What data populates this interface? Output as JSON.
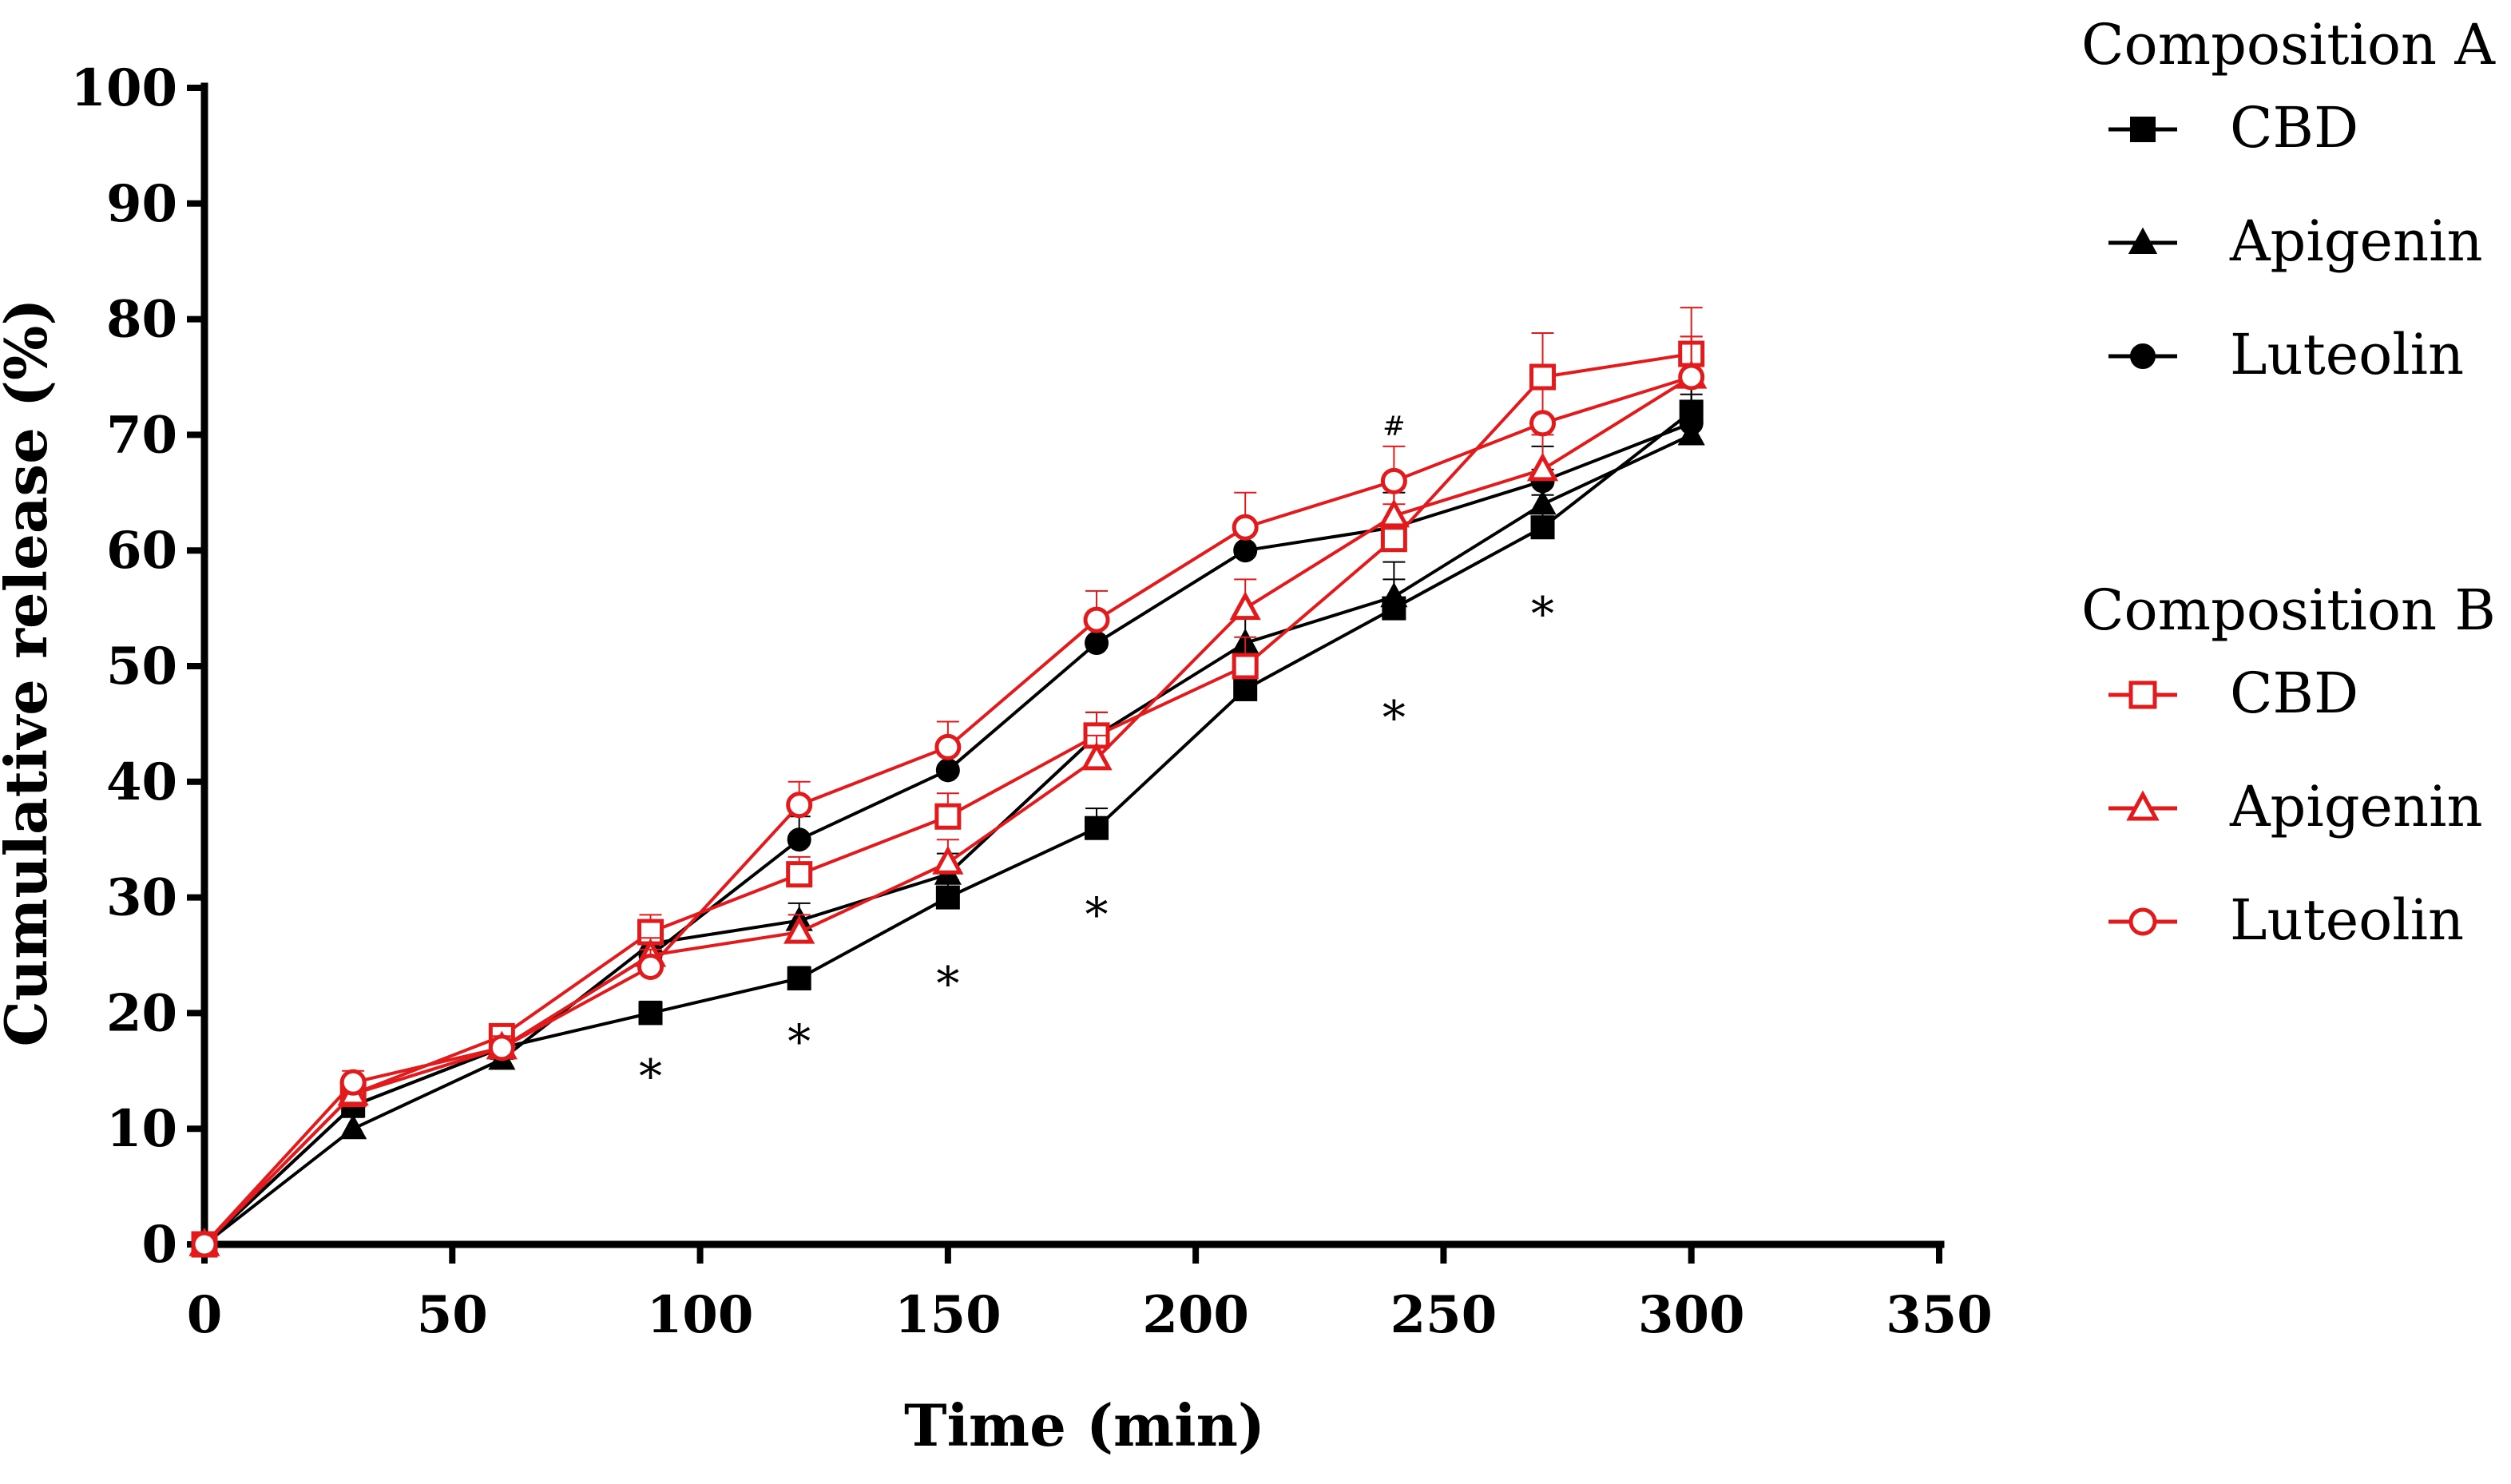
{
  "chart_data": {
    "type": "line",
    "title": "",
    "xlabel": "Time (min)",
    "ylabel": "Cumulative release (%)",
    "xlim": [
      0,
      350
    ],
    "ylim": [
      0,
      100
    ],
    "x_ticks": [
      0,
      50,
      100,
      150,
      200,
      250,
      300,
      350
    ],
    "y_ticks": [
      0,
      10,
      20,
      30,
      40,
      50,
      60,
      70,
      80,
      90,
      100
    ],
    "x_tick_labels": [
      "0",
      "50",
      "100",
      "150",
      "200",
      "250",
      "300",
      "350"
    ],
    "y_tick_labels": [
      "0",
      "10",
      "20",
      "30",
      "40",
      "50",
      "60",
      "70",
      "80",
      "90",
      "100"
    ],
    "grid": false,
    "legend_position": "right",
    "x": [
      0,
      30,
      60,
      90,
      120,
      150,
      180,
      210,
      240,
      270,
      300
    ],
    "groups": [
      {
        "title": "Composition A",
        "color": "#000000",
        "filled": true,
        "series": [
          {
            "name": "CBD",
            "marker": "square",
            "values": [
              0,
              12,
              17,
              20,
              23,
              30,
              36,
              48,
              55,
              62,
              72
            ],
            "errors": [
              0,
              1,
              1,
              1,
              1,
              1.5,
              1.7,
              2,
              2.5,
              2.8,
              3
            ]
          },
          {
            "name": "Apigenin",
            "marker": "triangle",
            "values": [
              0,
              10,
              16,
              26,
              28,
              32,
              44,
              52,
              56,
              64,
              70
            ],
            "errors": [
              0,
              1,
              1,
              1.5,
              1.5,
              1.8,
              2,
              2.5,
              3,
              3,
              3.5
            ]
          },
          {
            "name": "Luteolin",
            "marker": "circle",
            "values": [
              0,
              12,
              17,
              25,
              35,
              41,
              52,
              60,
              62,
              66,
              71
            ],
            "errors": [
              0,
              1,
              1,
              1.5,
              2,
              2,
              2.5,
              2.5,
              3,
              3,
              3.5
            ]
          }
        ]
      },
      {
        "title": "Composition B",
        "color": "#e31a1c",
        "filled": false,
        "series": [
          {
            "name": "CBD",
            "marker": "square",
            "values": [
              0,
              13,
              18,
              27,
              32,
              37,
              44,
              50,
              61,
              75,
              77
            ],
            "errors": [
              0,
              1,
              1,
              1.5,
              1.5,
              2,
              2,
              2.5,
              3,
              3.8,
              4
            ]
          },
          {
            "name": "Apigenin",
            "marker": "triangle",
            "values": [
              0,
              13,
              17,
              25,
              27,
              33,
              42,
              55,
              63,
              67,
              75
            ],
            "errors": [
              0,
              1,
              1,
              1.5,
              1.5,
              2,
              2,
              2.5,
              3,
              3,
              3.5
            ]
          },
          {
            "name": "Luteolin",
            "marker": "circle",
            "values": [
              0,
              14,
              17,
              24,
              38,
              43,
              54,
              62,
              66,
              71,
              75
            ],
            "errors": [
              0,
              1,
              1,
              1.5,
              2,
              2.2,
              2.5,
              3,
              3,
              3,
              3.5
            ]
          }
        ]
      }
    ],
    "annotations": [
      {
        "text": "*",
        "x": 90,
        "y": 15.5
      },
      {
        "text": "*",
        "x": 120,
        "y": 18.5
      },
      {
        "text": "*",
        "x": 150,
        "y": 23.5
      },
      {
        "text": "*",
        "x": 180,
        "y": 29.5
      },
      {
        "text": "*",
        "x": 240,
        "y": 46.5
      },
      {
        "text": "*",
        "x": 270,
        "y": 55.5
      },
      {
        "text": "#",
        "x": 240,
        "y": 70.8,
        "small": true
      }
    ]
  }
}
